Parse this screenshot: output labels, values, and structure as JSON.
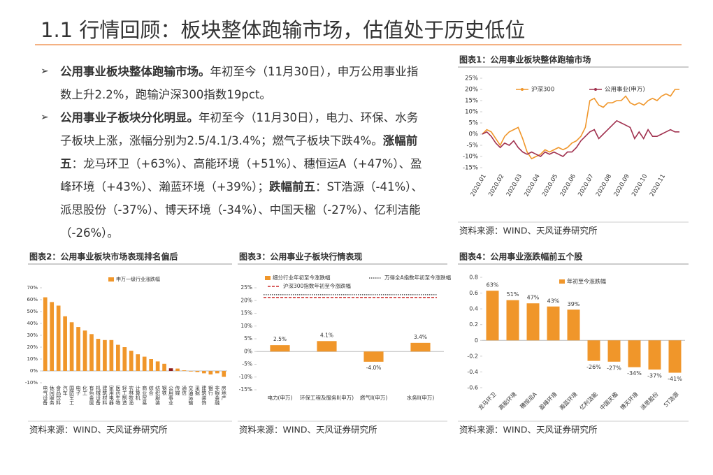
{
  "header": {
    "title": "1.1 行情回顾：板块整体跑输市场，估值处于历史低位"
  },
  "bullets": [
    [
      {
        "text": "公用事业板块整体跑输市场。",
        "bold": true
      },
      {
        "text": "年初至今（11月30日），申万公用事业指数上升2.2%，跑输沪深300指数19pct。",
        "bold": false
      }
    ],
    [
      {
        "text": "公用事业子板块分化明显。",
        "bold": true
      },
      {
        "text": "年初至今（11月30日），电力、环保、水务子板块上涨，涨幅分别为2.5/4.1/3.4%；燃气子板块下跌4%。",
        "bold": false
      },
      {
        "text": "涨幅前五",
        "bold": true
      },
      {
        "text": "：龙马环卫（+63%）、高能环境（+51%）、穗恒运A（+47%）、盈峰环境（+43%）、瀚蓝环境（+39%）；",
        "bold": false
      },
      {
        "text": "跌幅前五",
        "bold": true
      },
      {
        "text": "：ST浩源（-41%）、派思股份（-37%）、博天环境（-34%）、中国天楹（-27%）、亿利洁能（-26%）。",
        "bold": false
      }
    ]
  ],
  "chart_data": [
    {
      "type": "line",
      "title": "图表1：公用事业板块整体跑输市场",
      "source": "资料来源：WIND、天风证券研究所",
      "categories": [
        "2020.01",
        null,
        null,
        null,
        "2020.02",
        null,
        null,
        null,
        "2020.03",
        null,
        null,
        null,
        "2020.04",
        null,
        null,
        null,
        "2020.05",
        null,
        null,
        null,
        "2020.06",
        null,
        null,
        null,
        "2020.07",
        null,
        null,
        null,
        "2020.08",
        null,
        null,
        null,
        "2020.09",
        null,
        null,
        null,
        "2020.10",
        null,
        null,
        null,
        "2020.11",
        null,
        null,
        null,
        null
      ],
      "series": [
        {
          "name": "沪深300",
          "color": "#f0962a",
          "values": [
            0,
            2,
            1,
            -2,
            -5,
            -1,
            1,
            2,
            3,
            -2,
            -8,
            -11,
            -10,
            -9,
            -7,
            -8,
            -7,
            -6,
            -7,
            -6,
            -4,
            -3,
            -1,
            3,
            15,
            16,
            13,
            12,
            14,
            14,
            15,
            15,
            17,
            14,
            13,
            14,
            13,
            15,
            16,
            15,
            17,
            18,
            17,
            20,
            20
          ]
        },
        {
          "name": "公用事业(申万)",
          "color": "#a0304e",
          "values": [
            0,
            1,
            -1,
            -4,
            -6,
            -4,
            -5,
            -3,
            -6,
            -8,
            -9,
            -8,
            -9,
            -10,
            -8,
            -9,
            -8,
            -9,
            -10,
            -8,
            -8,
            -6,
            -3,
            -1,
            1,
            2,
            -2,
            0,
            2,
            4,
            6,
            5,
            4,
            3,
            -2,
            1,
            -2,
            2,
            -1,
            -1,
            0,
            1,
            2,
            1,
            1
          ]
        }
      ],
      "ylim": [
        -15,
        25
      ],
      "yticks": [
        {
          "value": -15,
          "label": "-15%"
        },
        {
          "value": -10,
          "label": "-10%"
        },
        {
          "value": -5,
          "label": "-5%"
        },
        {
          "value": 0,
          "label": "0%"
        },
        {
          "value": 5,
          "label": "5%"
        },
        {
          "value": 10,
          "label": "10%"
        },
        {
          "value": 15,
          "label": "15%"
        },
        {
          "value": 20,
          "label": "20%"
        },
        {
          "value": 25,
          "label": "25%"
        }
      ]
    },
    {
      "type": "bar",
      "title": "图表2：公用事业板块市场表现排名偏后",
      "source": "资料来源：WIND、天风证券研究所",
      "categories": [
        "电气设备",
        "休闲服务",
        "食品饮料",
        "汽车",
        "国防军工",
        "电子",
        "化工",
        "有色金属",
        "机械设备",
        "建筑材料",
        "家用电器",
        "医药生物",
        "轻工制造",
        "农林牧渔",
        "计算机",
        "商业贸易",
        "综合",
        "纺织服装",
        "钢铁",
        "公用事业",
        "传媒",
        "通信",
        "交通运输",
        "采掘",
        "建筑装饰",
        "银行",
        "非银金融",
        "房地产"
      ],
      "series": [
        {
          "name": "申万一级行业涨跌幅",
          "color": "#f0962a",
          "colors": [
            "#f0962a",
            "#f0962a",
            "#f0962a",
            "#f0962a",
            "#f0962a",
            "#f0962a",
            "#f0962a",
            "#f0962a",
            "#f0962a",
            "#f0962a",
            "#f0962a",
            "#f0962a",
            "#f0962a",
            "#f0962a",
            "#f0962a",
            "#f0962a",
            "#f0962a",
            "#f0962a",
            "#f0962a",
            "#8b1a1a",
            "#f0962a",
            "#f0962a",
            "#f0962a",
            "#f0962a",
            "#f0962a",
            "#f0962a",
            "#f0962a",
            "#f0962a"
          ],
          "values": [
            62,
            58,
            55,
            46,
            41,
            37,
            34,
            31,
            27,
            26,
            26,
            22,
            20,
            17,
            14,
            12,
            10,
            8,
            6,
            2.2,
            2,
            0.5,
            -0.5,
            -1,
            -2,
            -3,
            -2,
            -5
          ]
        }
      ],
      "ylim": [
        -10,
        70
      ],
      "yticks": [
        {
          "value": -10,
          "label": "-10%"
        },
        {
          "value": 0,
          "label": "0%"
        },
        {
          "value": 10,
          "label": "10%"
        },
        {
          "value": 20,
          "label": "20%"
        },
        {
          "value": 30,
          "label": "30%"
        },
        {
          "value": 40,
          "label": "40%"
        },
        {
          "value": 50,
          "label": "50%"
        },
        {
          "value": 60,
          "label": "60%"
        },
        {
          "value": 70,
          "label": "70%"
        }
      ]
    },
    {
      "type": "bar",
      "title": "图表3：公用事业子板块行情表现",
      "source": "资料来源：WIND、天风证券研究所",
      "categories": [
        "电力(申万)",
        "环保工程及服务Ⅱ(申万)",
        "燃气Ⅱ(申万)",
        "水务Ⅱ(申万)"
      ],
      "series": [
        {
          "name": "细分行业年初至今涨跌幅",
          "color": "#f0962a",
          "values": [
            2.5,
            4.1,
            -4.0,
            3.4
          ],
          "value_labels": [
            "2.5%",
            "4.1%",
            "-4.0%",
            "3.4%"
          ]
        }
      ],
      "reference_lines": [
        {
          "name": "万得全A指数年初至今涨跌幅",
          "value": 22.3,
          "color": "#333333",
          "style": "dotted"
        },
        {
          "name": "沪深300指数年初至今涨跌幅",
          "value": 21.2,
          "color": "#c00000",
          "style": "dashed"
        }
      ],
      "ylim": [
        -15,
        25
      ],
      "yticks": [
        {
          "value": -15,
          "label": "-15%"
        },
        {
          "value": -10,
          "label": "-10%"
        },
        {
          "value": -5,
          "label": "-5%"
        },
        {
          "value": 0,
          "label": "0%"
        },
        {
          "value": 5,
          "label": "5%"
        },
        {
          "value": 10,
          "label": "10%"
        },
        {
          "value": 15,
          "label": "15%"
        },
        {
          "value": 20,
          "label": "20%"
        },
        {
          "value": 25,
          "label": "25%"
        }
      ]
    },
    {
      "type": "bar",
      "title": "图表4：公用事业涨跌幅前五个股",
      "source": "资料来源：WIND、天风证券研究所",
      "categories": [
        "龙马环卫",
        "高能环境",
        "穗恒运A",
        "盈峰环境",
        "瀚蓝环境",
        "亿利洁能",
        "中国天楹",
        "博天环境",
        "派思股份",
        "ST浩源"
      ],
      "series": [
        {
          "name": "年初至今涨跌幅",
          "color": "#f0962a",
          "values": [
            0.63,
            0.51,
            0.47,
            0.43,
            0.39,
            -0.26,
            -0.27,
            -0.34,
            -0.37,
            -0.41
          ],
          "value_labels": [
            "63%",
            "51%",
            "47%",
            "43%",
            "39%",
            "-26%",
            "-27%",
            "-34%",
            "-37%",
            "-41%"
          ]
        }
      ],
      "ylim": [
        -0.6,
        0.8
      ],
      "yticks": [
        -0.6,
        -0.4,
        -0.2,
        0,
        0.2,
        0.4,
        0.6,
        0.8
      ]
    }
  ]
}
